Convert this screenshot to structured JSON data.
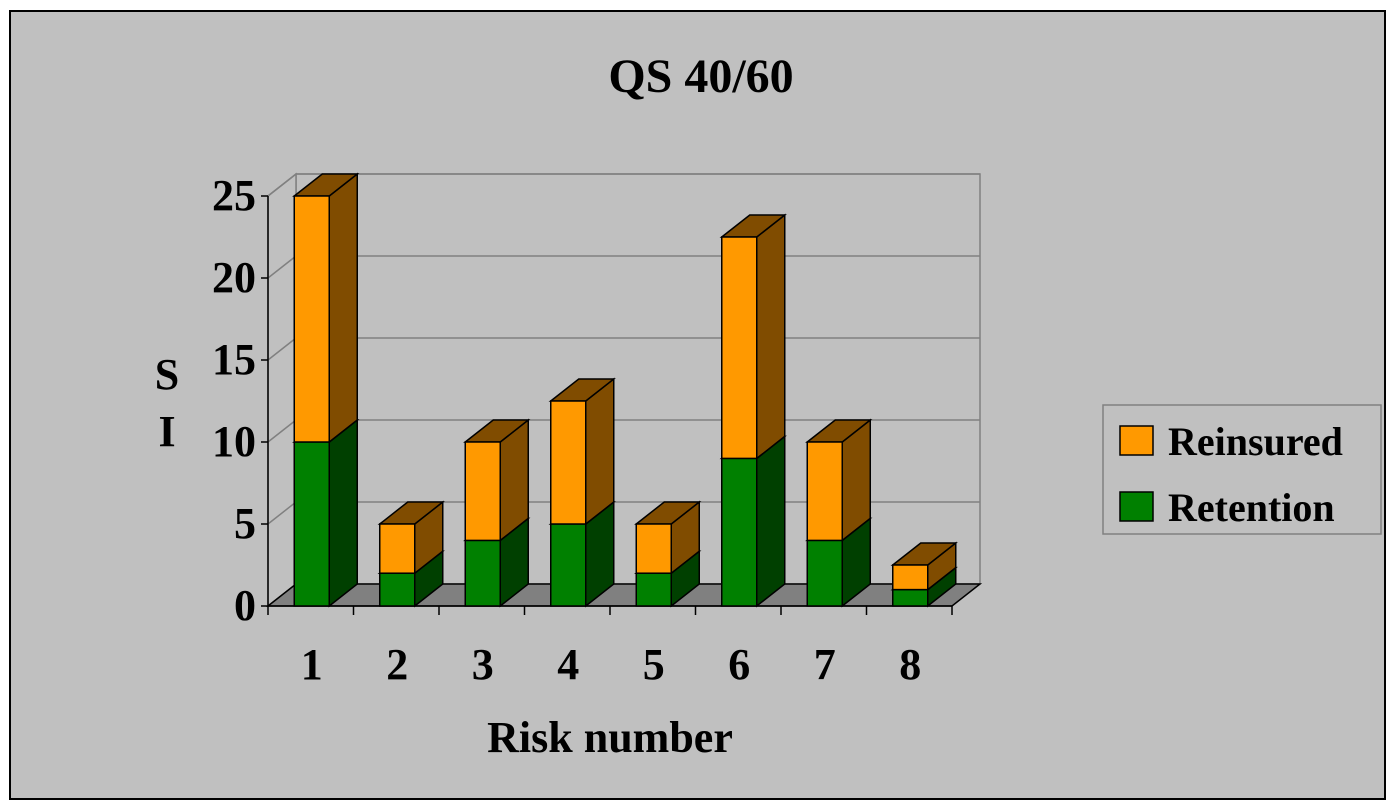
{
  "chart_data": {
    "type": "bar",
    "stacked": true,
    "three_d": true,
    "title": "QS 40/60",
    "xlabel": "Risk number",
    "ylabel": "S I",
    "ylabel_lines": [
      "S",
      "I"
    ],
    "categories": [
      "1",
      "2",
      "3",
      "4",
      "5",
      "6",
      "7",
      "8"
    ],
    "ylim": [
      0,
      25
    ],
    "yticks": [
      "0",
      "5",
      "10",
      "15",
      "20",
      "25"
    ],
    "series": [
      {
        "name": "Retention",
        "values": [
          10,
          2,
          4,
          5,
          2,
          9,
          4,
          1
        ],
        "color": "#008000",
        "side_color": "#004000"
      },
      {
        "name": "Reinsured",
        "values": [
          15,
          3,
          6,
          7.5,
          3,
          13.5,
          6,
          1.5
        ],
        "color": "#ff9900",
        "side_color": "#804c00"
      }
    ],
    "legend": [
      "Reinsured",
      "Retention"
    ],
    "legend_position": "right",
    "grid": true,
    "background": "#c0c0c0",
    "floor_color": "#808080"
  }
}
